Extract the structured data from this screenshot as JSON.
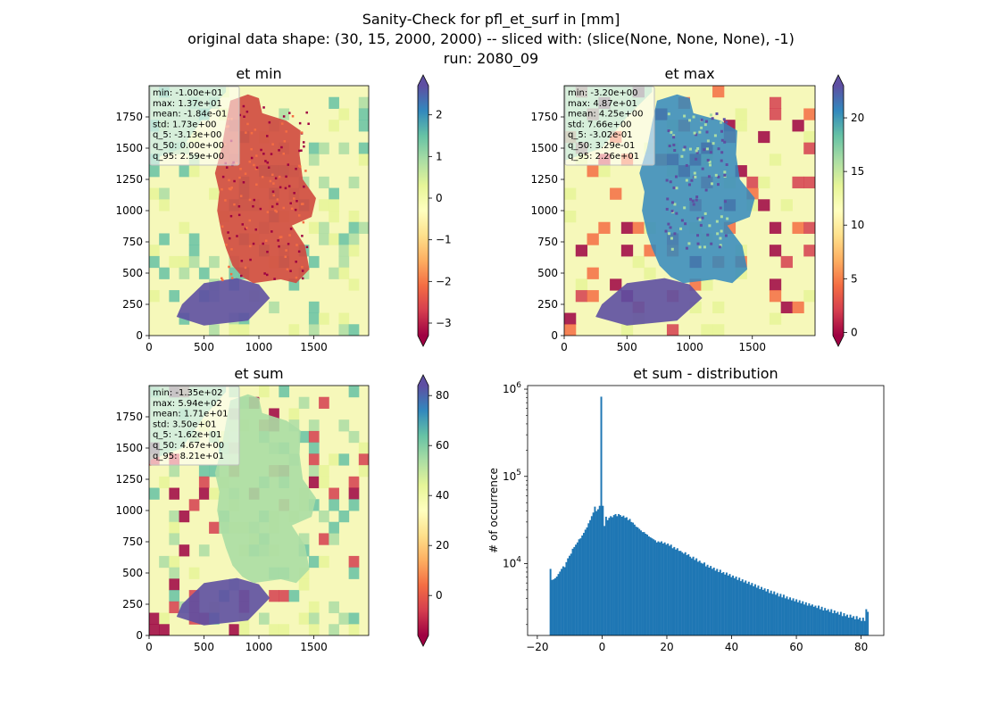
{
  "figure": {
    "title_lines": [
      "Sanity-Check for pfl_et_surf in [mm]",
      "original data shape: (30, 15, 2000, 2000) -- sliced with: (slice(None, None, None), -1)",
      "run: 2080_09"
    ]
  },
  "colors": {
    "cmap_spectral": [
      "#9e0142",
      "#d53e4f",
      "#f46d43",
      "#fdae61",
      "#fee08b",
      "#ffffbf",
      "#e6f598",
      "#abdda4",
      "#66c2a5",
      "#3288bd",
      "#5e4fa2"
    ],
    "hist_bar": "#1f77b4",
    "germany_fill": "#d0493f",
    "background_fill": "#f6f8ba"
  },
  "chart_data": [
    {
      "type": "heatmap",
      "id": "et_min",
      "title": "et min",
      "xlim": [
        0,
        2000
      ],
      "ylim": [
        0,
        2000
      ],
      "xticks": [
        "0",
        "500",
        "1000",
        "1500"
      ],
      "yticks": [
        "0",
        "250",
        "500",
        "750",
        "1000",
        "1250",
        "1500",
        "1750"
      ],
      "colorbar": {
        "min": -3.3,
        "max": 2.7,
        "ticks": [
          -3,
          -2,
          -1,
          0,
          1,
          2
        ],
        "ticklabels": [
          "−3",
          "−2",
          "−1",
          "0",
          "1",
          "2"
        ],
        "extend": "both"
      },
      "stats": [
        "min: -1.00e+01",
        "max: 1.37e+01",
        "mean: -1.84e-01",
        "std: 1.73e+00",
        "q_5: -3.13e+00",
        "q_50: 0.00e+00",
        "q_95: 2.59e+00"
      ]
    },
    {
      "type": "heatmap",
      "id": "et_max",
      "title": "et max",
      "xlim": [
        0,
        2000
      ],
      "ylim": [
        0,
        2000
      ],
      "xticks": [
        "0",
        "500",
        "1000",
        "1500"
      ],
      "yticks": [
        "0",
        "250",
        "500",
        "750",
        "1000",
        "1250",
        "1500",
        "1750"
      ],
      "colorbar": {
        "min": -0.3,
        "max": 23,
        "ticks": [
          0,
          5,
          10,
          15,
          20
        ],
        "ticklabels": [
          "0",
          "5",
          "10",
          "15",
          "20"
        ],
        "extend": "both"
      },
      "stats": [
        "min: -3.20e+00",
        "max: 4.87e+01",
        "mean: 4.25e+00",
        "std: 7.66e+00",
        "q_5: -3.02e-01",
        "q_50: 3.29e-01",
        "q_95: 2.26e+01"
      ]
    },
    {
      "type": "heatmap",
      "id": "et_sum",
      "title": "et sum",
      "xlim": [
        0,
        2000
      ],
      "ylim": [
        0,
        2000
      ],
      "xticks": [
        "0",
        "500",
        "1000",
        "1500"
      ],
      "yticks": [
        "0",
        "250",
        "500",
        "750",
        "1000",
        "1250",
        "1500",
        "1750"
      ],
      "colorbar": {
        "min": -16,
        "max": 84,
        "ticks": [
          0,
          20,
          40,
          60,
          80
        ],
        "ticklabels": [
          "0",
          "20",
          "40",
          "60",
          "80"
        ],
        "extend": "both"
      },
      "stats": [
        "min: -1.35e+02",
        "max: 5.94e+02",
        "mean: 1.71e+01",
        "std: 3.50e+01",
        "q_5: -1.62e+01",
        "q_50: 4.67e+00",
        "q_95: 8.21e+01"
      ]
    },
    {
      "type": "bar",
      "id": "et_sum_distribution",
      "title": "et sum - distribution",
      "ylabel": "# of occurrence",
      "yscale": "log",
      "xlim": [
        -23,
        87
      ],
      "ylim": [
        1500,
        1100000
      ],
      "xticks": [
        -20,
        0,
        20,
        40,
        60,
        80
      ],
      "xticklabels": [
        "−20",
        "0",
        "20",
        "40",
        "60",
        "80"
      ],
      "yticks": [
        10000,
        100000,
        1000000
      ],
      "bin_width": 0.49,
      "bins": [
        {
          "x": -16.2,
          "y": 8700
        },
        {
          "x": -15.71,
          "y": 6500
        },
        {
          "x": -15.22,
          "y": 6600
        },
        {
          "x": -14.73,
          "y": 6800
        },
        {
          "x": -14.24,
          "y": 7100
        },
        {
          "x": -13.75,
          "y": 7600
        },
        {
          "x": -13.26,
          "y": 8100
        },
        {
          "x": -12.77,
          "y": 8700
        },
        {
          "x": -12.28,
          "y": 9300
        },
        {
          "x": -11.79,
          "y": 9100
        },
        {
          "x": -11.3,
          "y": 10400
        },
        {
          "x": -10.81,
          "y": 11500
        },
        {
          "x": -10.32,
          "y": 12300
        },
        {
          "x": -9.83,
          "y": 13000
        },
        {
          "x": -9.34,
          "y": 14800
        },
        {
          "x": -8.85,
          "y": 15500
        },
        {
          "x": -8.36,
          "y": 16500
        },
        {
          "x": -7.87,
          "y": 17500
        },
        {
          "x": -7.38,
          "y": 19000
        },
        {
          "x": -6.89,
          "y": 19500
        },
        {
          "x": -6.4,
          "y": 21000
        },
        {
          "x": -5.91,
          "y": 22500
        },
        {
          "x": -5.42,
          "y": 24500
        },
        {
          "x": -4.93,
          "y": 26000
        },
        {
          "x": -4.44,
          "y": 29000
        },
        {
          "x": -3.95,
          "y": 31500
        },
        {
          "x": -3.46,
          "y": 35000
        },
        {
          "x": -2.97,
          "y": 38500
        },
        {
          "x": -2.48,
          "y": 45000
        },
        {
          "x": -1.99,
          "y": 40000
        },
        {
          "x": -1.5,
          "y": 42000
        },
        {
          "x": -1.01,
          "y": 46000
        },
        {
          "x": -0.52,
          "y": 820000
        },
        {
          "x": -0.03,
          "y": 46000
        },
        {
          "x": 0.46,
          "y": 27000
        },
        {
          "x": 0.95,
          "y": 34500
        },
        {
          "x": 1.44,
          "y": 31500
        },
        {
          "x": 1.93,
          "y": 33500
        },
        {
          "x": 2.42,
          "y": 35000
        },
        {
          "x": 2.91,
          "y": 34000
        },
        {
          "x": 3.4,
          "y": 36000
        },
        {
          "x": 3.89,
          "y": 37000
        },
        {
          "x": 4.38,
          "y": 35000
        },
        {
          "x": 4.87,
          "y": 37000
        },
        {
          "x": 5.36,
          "y": 36000
        },
        {
          "x": 5.85,
          "y": 34500
        },
        {
          "x": 6.34,
          "y": 35500
        },
        {
          "x": 6.83,
          "y": 33500
        },
        {
          "x": 7.32,
          "y": 34000
        },
        {
          "x": 7.81,
          "y": 31500
        },
        {
          "x": 8.3,
          "y": 32500
        },
        {
          "x": 8.79,
          "y": 30000
        },
        {
          "x": 9.28,
          "y": 29500
        },
        {
          "x": 9.77,
          "y": 28000
        },
        {
          "x": 10.26,
          "y": 26500
        },
        {
          "x": 10.75,
          "y": 26000
        },
        {
          "x": 11.24,
          "y": 25000
        },
        {
          "x": 11.73,
          "y": 24000
        },
        {
          "x": 12.22,
          "y": 23000
        },
        {
          "x": 12.71,
          "y": 23000
        },
        {
          "x": 13.2,
          "y": 22000
        },
        {
          "x": 13.69,
          "y": 21500
        },
        {
          "x": 14.18,
          "y": 20500
        },
        {
          "x": 14.67,
          "y": 20000
        },
        {
          "x": 15.16,
          "y": 19500
        },
        {
          "x": 15.65,
          "y": 19000
        },
        {
          "x": 16.14,
          "y": 18500
        },
        {
          "x": 16.63,
          "y": 17500
        },
        {
          "x": 17.12,
          "y": 18000
        },
        {
          "x": 17.61,
          "y": 17500
        },
        {
          "x": 18.1,
          "y": 18000
        },
        {
          "x": 18.59,
          "y": 17000
        },
        {
          "x": 19.08,
          "y": 17500
        },
        {
          "x": 19.57,
          "y": 16500
        },
        {
          "x": 20.06,
          "y": 17000
        },
        {
          "x": 20.55,
          "y": 16000
        },
        {
          "x": 21.04,
          "y": 16500
        },
        {
          "x": 21.53,
          "y": 15000
        },
        {
          "x": 22.02,
          "y": 15500
        },
        {
          "x": 22.51,
          "y": 14500
        },
        {
          "x": 23.0,
          "y": 15000
        },
        {
          "x": 23.49,
          "y": 14000
        },
        {
          "x": 23.98,
          "y": 14000
        },
        {
          "x": 24.47,
          "y": 13500
        },
        {
          "x": 24.96,
          "y": 13000
        },
        {
          "x": 25.45,
          "y": 13500
        },
        {
          "x": 25.94,
          "y": 12500
        },
        {
          "x": 26.43,
          "y": 12800
        },
        {
          "x": 26.92,
          "y": 12000
        },
        {
          "x": 27.41,
          "y": 11500
        },
        {
          "x": 27.9,
          "y": 12000
        },
        {
          "x": 28.39,
          "y": 11000
        },
        {
          "x": 28.88,
          "y": 11500
        },
        {
          "x": 29.37,
          "y": 10500
        },
        {
          "x": 29.86,
          "y": 10800
        },
        {
          "x": 30.35,
          "y": 10200
        },
        {
          "x": 30.84,
          "y": 10000
        },
        {
          "x": 31.33,
          "y": 10300
        },
        {
          "x": 31.82,
          "y": 9300
        },
        {
          "x": 32.31,
          "y": 9700
        },
        {
          "x": 32.8,
          "y": 9000
        },
        {
          "x": 33.29,
          "y": 9400
        },
        {
          "x": 33.78,
          "y": 8700
        },
        {
          "x": 34.27,
          "y": 9000
        },
        {
          "x": 34.76,
          "y": 8300
        },
        {
          "x": 35.25,
          "y": 8700
        },
        {
          "x": 35.74,
          "y": 8000
        },
        {
          "x": 36.23,
          "y": 8500
        },
        {
          "x": 36.72,
          "y": 7800
        },
        {
          "x": 37.21,
          "y": 8000
        },
        {
          "x": 37.7,
          "y": 7500
        },
        {
          "x": 38.19,
          "y": 7900
        },
        {
          "x": 38.68,
          "y": 7300
        },
        {
          "x": 39.17,
          "y": 7600
        },
        {
          "x": 39.66,
          "y": 7000
        },
        {
          "x": 40.15,
          "y": 7300
        },
        {
          "x": 40.64,
          "y": 6800
        },
        {
          "x": 41.13,
          "y": 7100
        },
        {
          "x": 41.62,
          "y": 6500
        },
        {
          "x": 42.11,
          "y": 6900
        },
        {
          "x": 42.6,
          "y": 6300
        },
        {
          "x": 43.09,
          "y": 6600
        },
        {
          "x": 43.58,
          "y": 6100
        },
        {
          "x": 44.07,
          "y": 6400
        },
        {
          "x": 44.56,
          "y": 5900
        },
        {
          "x": 45.05,
          "y": 6200
        },
        {
          "x": 45.54,
          "y": 5700
        },
        {
          "x": 46.03,
          "y": 6000
        },
        {
          "x": 46.52,
          "y": 5500
        },
        {
          "x": 47.01,
          "y": 5800
        },
        {
          "x": 47.5,
          "y": 5300
        },
        {
          "x": 47.99,
          "y": 5600
        },
        {
          "x": 48.48,
          "y": 5100
        },
        {
          "x": 48.97,
          "y": 5400
        },
        {
          "x": 49.46,
          "y": 5000
        },
        {
          "x": 49.95,
          "y": 5200
        },
        {
          "x": 50.44,
          "y": 4800
        },
        {
          "x": 50.93,
          "y": 5100
        },
        {
          "x": 51.42,
          "y": 4600
        },
        {
          "x": 51.91,
          "y": 4900
        },
        {
          "x": 52.4,
          "y": 4500
        },
        {
          "x": 52.89,
          "y": 4800
        },
        {
          "x": 53.38,
          "y": 4400
        },
        {
          "x": 53.87,
          "y": 4600
        },
        {
          "x": 54.36,
          "y": 4200
        },
        {
          "x": 54.85,
          "y": 4500
        },
        {
          "x": 55.34,
          "y": 4100
        },
        {
          "x": 55.83,
          "y": 4400
        },
        {
          "x": 56.32,
          "y": 4000
        },
        {
          "x": 56.81,
          "y": 4200
        },
        {
          "x": 57.3,
          "y": 3900
        },
        {
          "x": 57.79,
          "y": 4100
        },
        {
          "x": 58.28,
          "y": 3800
        },
        {
          "x": 58.77,
          "y": 4000
        },
        {
          "x": 59.26,
          "y": 3700
        },
        {
          "x": 59.75,
          "y": 3900
        },
        {
          "x": 60.24,
          "y": 3600
        },
        {
          "x": 60.73,
          "y": 3800
        },
        {
          "x": 61.22,
          "y": 3500
        },
        {
          "x": 61.71,
          "y": 3700
        },
        {
          "x": 62.2,
          "y": 3400
        },
        {
          "x": 62.69,
          "y": 3600
        },
        {
          "x": 63.18,
          "y": 3300
        },
        {
          "x": 63.67,
          "y": 3500
        },
        {
          "x": 64.16,
          "y": 3300
        },
        {
          "x": 64.65,
          "y": 3400
        },
        {
          "x": 65.14,
          "y": 3200
        },
        {
          "x": 65.63,
          "y": 3300
        },
        {
          "x": 66.12,
          "y": 3100
        },
        {
          "x": 66.61,
          "y": 3300
        },
        {
          "x": 67.1,
          "y": 3000
        },
        {
          "x": 67.59,
          "y": 3200
        },
        {
          "x": 68.08,
          "y": 2900
        },
        {
          "x": 68.57,
          "y": 3100
        },
        {
          "x": 69.06,
          "y": 2900
        },
        {
          "x": 69.55,
          "y": 3000
        },
        {
          "x": 70.04,
          "y": 2800
        },
        {
          "x": 70.53,
          "y": 3000
        },
        {
          "x": 71.02,
          "y": 2700
        },
        {
          "x": 71.51,
          "y": 2900
        },
        {
          "x": 72.0,
          "y": 2700
        },
        {
          "x": 72.49,
          "y": 2800
        },
        {
          "x": 72.98,
          "y": 2600
        },
        {
          "x": 73.47,
          "y": 2800
        },
        {
          "x": 73.96,
          "y": 2500
        },
        {
          "x": 74.45,
          "y": 2700
        },
        {
          "x": 74.94,
          "y": 2500
        },
        {
          "x": 75.43,
          "y": 2600
        },
        {
          "x": 75.92,
          "y": 2400
        },
        {
          "x": 76.41,
          "y": 2600
        },
        {
          "x": 76.9,
          "y": 2400
        },
        {
          "x": 77.39,
          "y": 2500
        },
        {
          "x": 77.88,
          "y": 2300
        },
        {
          "x": 78.37,
          "y": 2500
        },
        {
          "x": 78.86,
          "y": 2300
        },
        {
          "x": 79.35,
          "y": 2400
        },
        {
          "x": 79.84,
          "y": 2200
        },
        {
          "x": 80.33,
          "y": 2400
        },
        {
          "x": 80.82,
          "y": 2200
        },
        {
          "x": 81.31,
          "y": 3000
        },
        {
          "x": 81.8,
          "y": 2800
        }
      ]
    }
  ]
}
